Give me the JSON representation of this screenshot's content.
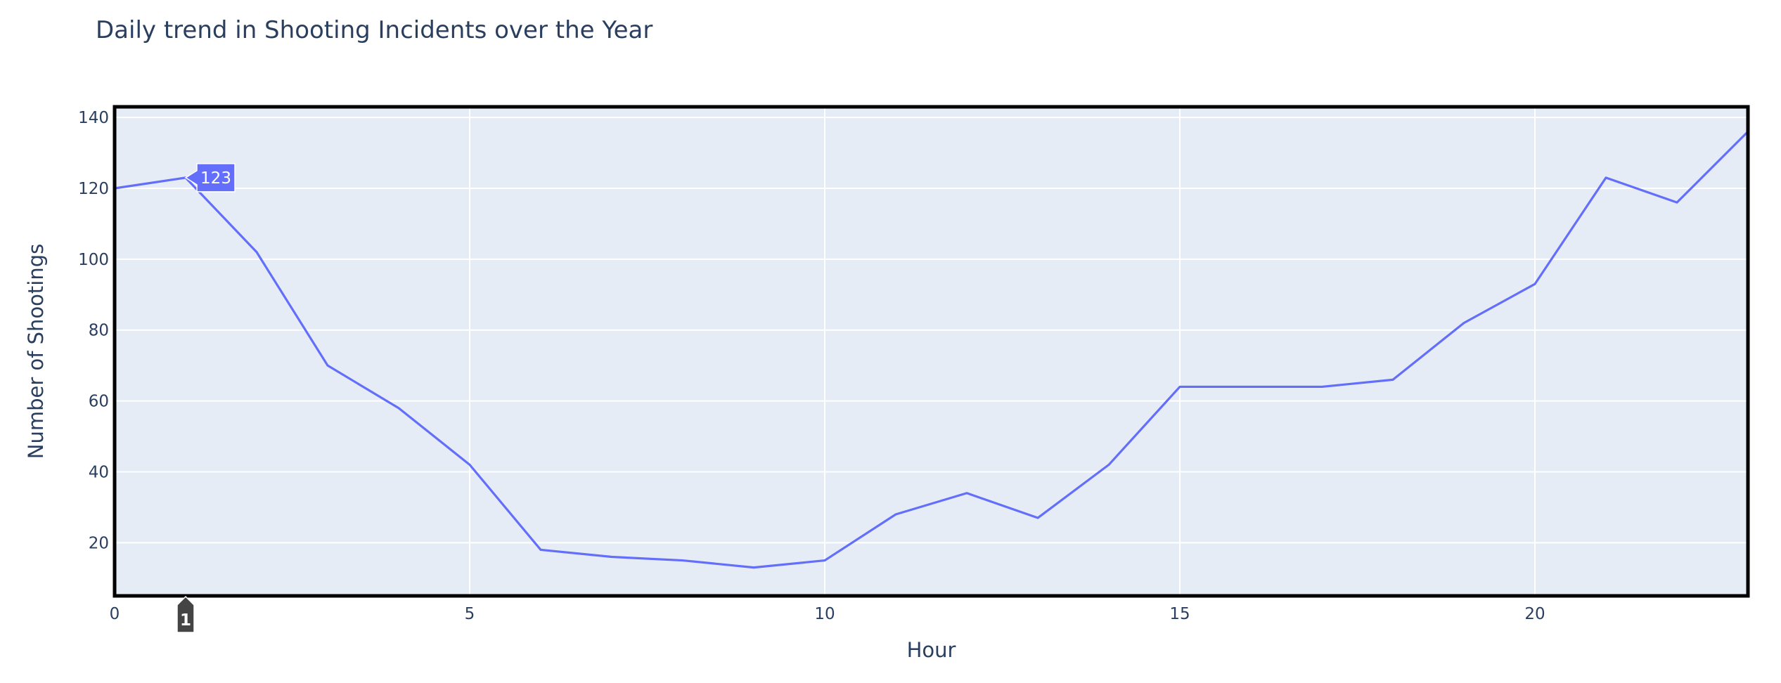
{
  "chart_data": {
    "type": "line",
    "title": "Daily trend in Shooting Incidents over the Year",
    "xlabel": "Hour",
    "ylabel": "Number of Shootings",
    "x": [
      0,
      1,
      2,
      3,
      4,
      5,
      6,
      7,
      8,
      9,
      10,
      11,
      12,
      13,
      14,
      15,
      16,
      17,
      18,
      19,
      20,
      21,
      22,
      23
    ],
    "values": [
      120,
      123,
      102,
      70,
      58,
      42,
      18,
      16,
      15,
      13,
      15,
      28,
      34,
      27,
      42,
      64,
      64,
      64,
      66,
      82,
      93,
      123,
      116,
      136
    ],
    "xlim": [
      0,
      23
    ],
    "ylim": [
      5,
      143
    ],
    "x_ticks": [
      0,
      5,
      10,
      15,
      20
    ],
    "y_ticks": [
      20,
      40,
      60,
      80,
      100,
      120,
      140
    ],
    "grid": true,
    "line_color": "#636efa",
    "plot_background": "#e5ecf6",
    "hover": {
      "x": 1,
      "label": "123",
      "spike_label": "1"
    }
  }
}
